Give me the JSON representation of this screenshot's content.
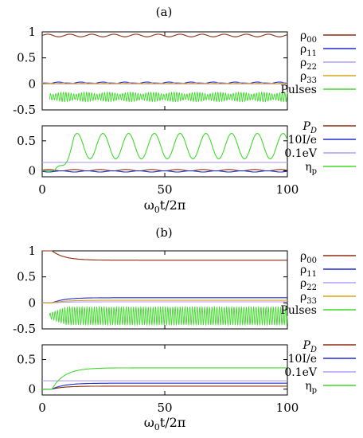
{
  "colors": {
    "rho00": "#8b2e0e",
    "rho11": "#1f2ccc",
    "rho22": "#b39ef5",
    "rho33": "#d8a31c",
    "pulses": "#41d82c",
    "PD": "#8b2e0e",
    "I": "#1f2ccc",
    "eV": "#b39ef5",
    "eta": "#41d82c",
    "axis": "#000000"
  },
  "chart_data": [
    {
      "type": "line",
      "panel_label": "(a)",
      "ylim": [
        -0.5,
        1
      ],
      "xlim": [
        0,
        100
      ],
      "yticks": [
        "1",
        "0.5",
        "0",
        "-0.5"
      ],
      "legend_position": "right",
      "series": [
        {
          "name": "ρ00",
          "key": "rho00",
          "desc": "oscillating near 0.92",
          "base": 0.93,
          "amp": 0.025,
          "period": 9
        },
        {
          "name": "ρ11",
          "key": "rho11",
          "desc": "oscillating near 0.02",
          "base": 0.02,
          "amp": 0.015,
          "period": 9
        },
        {
          "name": "ρ22",
          "key": "rho22",
          "desc": "oscillating near 0.02",
          "base": 0.015,
          "amp": 0.01,
          "period": 9
        },
        {
          "name": "ρ33",
          "key": "rho33",
          "desc": "constant near 0",
          "base": 0.0,
          "amp": 0.0,
          "period": 9
        },
        {
          "name": "Pulses",
          "key": "pulses",
          "desc": "fast pulse train centered at -0.25, amplitude up to 0.1",
          "base": -0.25,
          "amp": 0.09,
          "period": 9
        }
      ]
    },
    {
      "type": "line",
      "ylim": [
        -0.1,
        0.75
      ],
      "xlim": [
        0,
        100
      ],
      "yticks": [
        "0.5",
        "0"
      ],
      "xticks": [
        "0",
        "50",
        "100"
      ],
      "xlabel": "ω0t/2π",
      "legend_position": "right",
      "series": [
        {
          "name": "PD",
          "key": "PD",
          "values": [
            0.01,
            0.01,
            0.01,
            0.01,
            0.01
          ],
          "x": [
            0,
            25,
            50,
            75,
            100
          ]
        },
        {
          "name": "10I/e",
          "key": "I",
          "values": [
            -0.01,
            -0.01,
            -0.01,
            -0.01,
            -0.01
          ],
          "x": [
            0,
            25,
            50,
            75,
            100
          ]
        },
        {
          "name": "0.1eV",
          "key": "eV",
          "values": [
            0.14,
            0.14,
            0.14,
            0.14,
            0.14
          ],
          "x": [
            0,
            25,
            50,
            75,
            100
          ]
        },
        {
          "name": "ηp",
          "key": "eta",
          "peaks": [
            0.65,
            0.65,
            0.65,
            0.65,
            0.65,
            0.65,
            0.65,
            0.65,
            0.65
          ],
          "period": 10.5,
          "min": 0.18
        }
      ]
    },
    {
      "type": "line",
      "panel_label": "(b)",
      "ylim": [
        -0.5,
        1
      ],
      "xlim": [
        0,
        100
      ],
      "yticks": [
        "1",
        "0.5",
        "0",
        "-0.5"
      ],
      "legend_position": "right",
      "series": [
        {
          "name": "ρ00",
          "key": "rho00",
          "start": 1.0,
          "end": 0.82
        },
        {
          "name": "ρ11",
          "key": "rho11",
          "start": 0.0,
          "end": 0.1
        },
        {
          "name": "ρ22",
          "key": "rho22",
          "start": 0.0,
          "end": 0.02
        },
        {
          "name": "ρ33",
          "key": "rho33",
          "start": 0.0,
          "end": 0.05
        },
        {
          "name": "Pulses",
          "key": "pulses",
          "base": -0.25,
          "amp": 0.17
        }
      ]
    },
    {
      "type": "line",
      "ylim": [
        -0.1,
        0.75
      ],
      "xlim": [
        0,
        100
      ],
      "yticks": [
        "0.5",
        "0"
      ],
      "xticks": [
        "0",
        "50",
        "100"
      ],
      "xlabel": "ω0t/2π",
      "legend_position": "right",
      "series": [
        {
          "name": "PD",
          "key": "PD",
          "start": 0.0,
          "end": 0.05
        },
        {
          "name": "10I/e",
          "key": "I",
          "start": 0.0,
          "end": 0.1
        },
        {
          "name": "0.1eV",
          "key": "eV",
          "start": 0.14,
          "end": 0.14
        },
        {
          "name": "ηp",
          "key": "eta",
          "start": 0.0,
          "end": 0.36
        }
      ]
    }
  ],
  "labels": {
    "panel_a": "(a)",
    "panel_b": "(b)",
    "xlabel_base": "ω",
    "xlabel_sub": "0",
    "xlabel_rest": "t/2π",
    "legend_top": [
      {
        "base": "ρ",
        "sub": "00",
        "key": "rho00"
      },
      {
        "base": "ρ",
        "sub": "11",
        "key": "rho11"
      },
      {
        "base": "ρ",
        "sub": "22",
        "key": "rho22"
      },
      {
        "base": "ρ",
        "sub": "33",
        "key": "rho33"
      },
      {
        "base": "Pulses",
        "sub": "",
        "key": "pulses"
      }
    ],
    "legend_bottom": [
      {
        "text": "P",
        "sub": "D",
        "key": "PD",
        "italic": true
      },
      {
        "text": "10I/e",
        "sub": "",
        "key": "I",
        "italic": false
      },
      {
        "text": "0.1eV",
        "sub": "",
        "key": "eV",
        "italic": false
      },
      {
        "text": "η",
        "sub": "p",
        "key": "eta",
        "italic": false
      }
    ],
    "yticks_top": [
      "1",
      "0.5",
      "0",
      "-0.5"
    ],
    "yticks_bottom": [
      "0.5",
      "0"
    ],
    "xticks": [
      "0",
      "50",
      "100"
    ]
  }
}
